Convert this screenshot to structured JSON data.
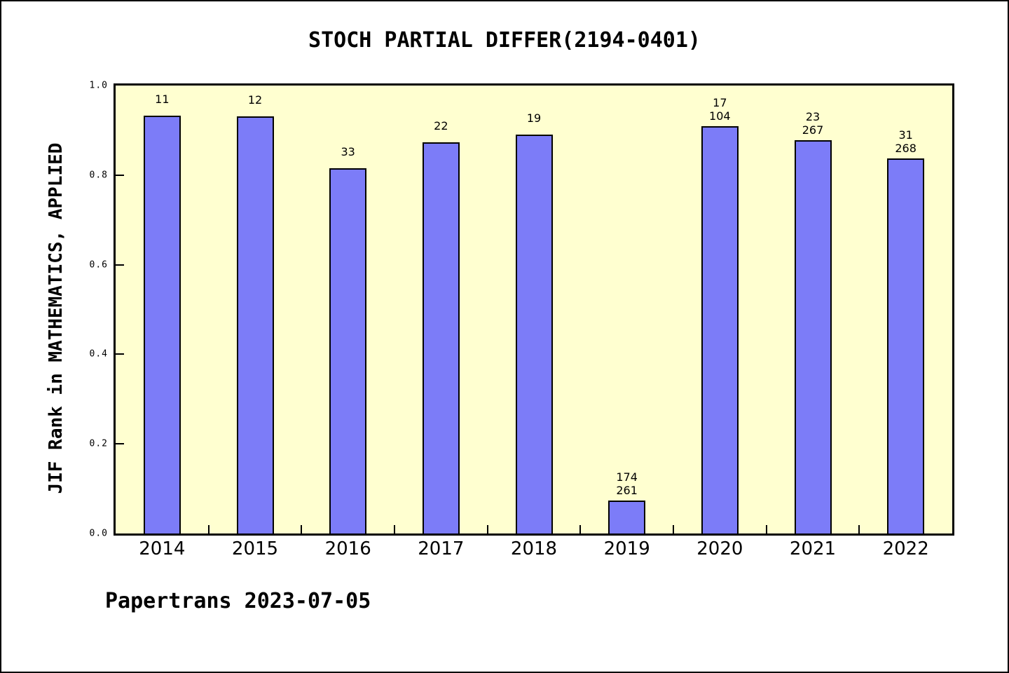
{
  "title": "STOCH PARTIAL DIFFER(2194-0401)",
  "footer": "Papertrans 2023-07-05",
  "chart_data": {
    "type": "bar",
    "title": "STOCH PARTIAL DIFFER(2194-0401)",
    "xlabel": "",
    "ylabel": "JIF Rank in MATHEMATICS, APPLIED",
    "categories": [
      "2014",
      "2015",
      "2016",
      "2017",
      "2018",
      "2019",
      "2020",
      "2021",
      "2022"
    ],
    "values": [
      0.932,
      0.931,
      0.816,
      0.874,
      0.891,
      0.073,
      0.909,
      0.878,
      0.837
    ],
    "bar_labels": [
      [
        "11"
      ],
      [
        "12"
      ],
      [
        "33"
      ],
      [
        "22"
      ],
      [
        "19"
      ],
      [
        "174",
        "261"
      ],
      [
        "17",
        "104"
      ],
      [
        "23",
        "267"
      ],
      [
        "31",
        "268"
      ]
    ],
    "ylim": [
      0,
      1
    ],
    "yticks": [
      0.0,
      0.2,
      0.4,
      0.6,
      0.8,
      1.0
    ],
    "ytick_labels": [
      "0.0",
      "0.2",
      "0.4",
      "0.6",
      "0.8",
      "1.0"
    ],
    "grid": false,
    "legend": null,
    "colors": {
      "bar_fill": "#7C7CF8",
      "bar_border": "#000000",
      "plot_background": "#FFFFD0",
      "page_background": "#FFFFFF",
      "text": "#000000"
    }
  }
}
